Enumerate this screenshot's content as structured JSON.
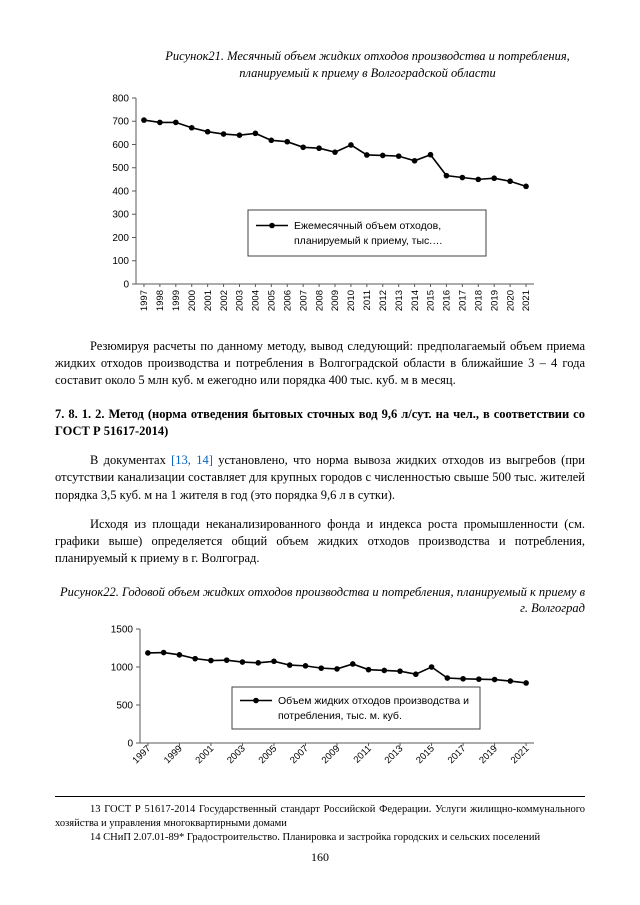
{
  "page": {
    "number": "160"
  },
  "colors": {
    "link": "#0563C1",
    "line": "#000000",
    "axis": "#595959"
  },
  "figure21": {
    "caption": "Рисунок21. Месячный объем жидких отходов производства и потребления, планируемый к приему в Волгоградской области"
  },
  "figure22": {
    "caption": "Рисунок22. Годовой объем жидких отходов производства и потребления, планируемый к приему в г. Волгоград"
  },
  "paragraphs": {
    "p1": "Резюмируя расчеты по данному методу, вывод следующий: предполагаемый объем приема жидких отходов производства и потребления в Волгоградской области в ближайшие 3 – 4 года составит около 5 млн куб. м ежегодно или порядка 400 тыс. куб. м в месяц.",
    "p2_prefix": "В документах ",
    "p2_ref": "[13, 14]",
    "p2_suffix": " установлено, что норма вывоза жидких отходов из выгребов (при отсутствии канализации составляет для крупных городов с численностью свыше 500 тыс. жителей порядка 3,5 куб. м на 1 жителя в год (это порядка 9,6 л в сутки).",
    "p3": "Исходя из площади неканализированного фонда и индекса роста промышленности (см. графики выше) определяется общий объем жидких отходов производства и потребления, планируемый к приему в г. Волгоград."
  },
  "heading": "7. 8. 1. 2. Метод (норма отведения бытовых сточных вод 9,6 л/сут. на чел., в соответствии со ГОСТ Р 51617-2014)",
  "footnotes": {
    "f13": "13 ГОСТ Р 51617-2014 Государственный стандарт Российской Федерации. Услуги жилищно-коммунального хозяйства и управления многоквартирными домами",
    "f14": "14 СНиП 2.07.01-89* Градостроительство. Планировка и застройка городских и сельских поселений"
  },
  "chart_data": [
    {
      "type": "line",
      "title": "",
      "xlabel": "",
      "ylabel": "",
      "grid": false,
      "x": [
        1997,
        1998,
        1999,
        2000,
        2001,
        2002,
        2003,
        2004,
        2005,
        2006,
        2007,
        2008,
        2009,
        2010,
        2011,
        2012,
        2013,
        2014,
        2015,
        2016,
        2017,
        2018,
        2019,
        2020,
        2021
      ],
      "xtick_step": 1,
      "ylim": [
        0,
        800
      ],
      "yticks": [
        0,
        100,
        200,
        300,
        400,
        500,
        600,
        700,
        800
      ],
      "series": [
        {
          "name": "Ежемесячный объем отходов, планируемый к приему, тыс.…",
          "values": [
            705,
            695,
            695,
            672,
            655,
            645,
            640,
            648,
            618,
            612,
            588,
            584,
            567,
            598,
            555,
            553,
            550,
            530,
            556,
            466,
            458,
            450,
            455,
            442,
            420
          ]
        }
      ],
      "legend": {
        "position": "inside-bottom-right",
        "lines": [
          "Ежемесячный объем отходов,",
          "планируемый к приему, тыс.…"
        ]
      }
    },
    {
      "type": "line",
      "title": "",
      "xlabel": "",
      "ylabel": "",
      "grid": false,
      "x": [
        1997,
        1998,
        1999,
        2000,
        2001,
        2002,
        2003,
        2004,
        2005,
        2006,
        2007,
        2008,
        2009,
        2010,
        2011,
        2012,
        2013,
        2014,
        2015,
        2016,
        2017,
        2018,
        2019,
        2020,
        2021
      ],
      "xtick_step": 2,
      "ylim": [
        0,
        1500
      ],
      "yticks": [
        0,
        500,
        1000,
        1500
      ],
      "series": [
        {
          "name": "Объем жидких отходов производства и потребления, тыс. м. куб.",
          "values": [
            1185,
            1190,
            1160,
            1110,
            1085,
            1090,
            1065,
            1055,
            1075,
            1025,
            1015,
            985,
            975,
            1040,
            965,
            955,
            945,
            905,
            1000,
            855,
            845,
            840,
            835,
            815,
            790
          ]
        }
      ],
      "legend": {
        "position": "inside-bottom-center",
        "lines": [
          "Объем жидких отходов производства и",
          "потребления, тыс. м. куб."
        ]
      }
    }
  ]
}
